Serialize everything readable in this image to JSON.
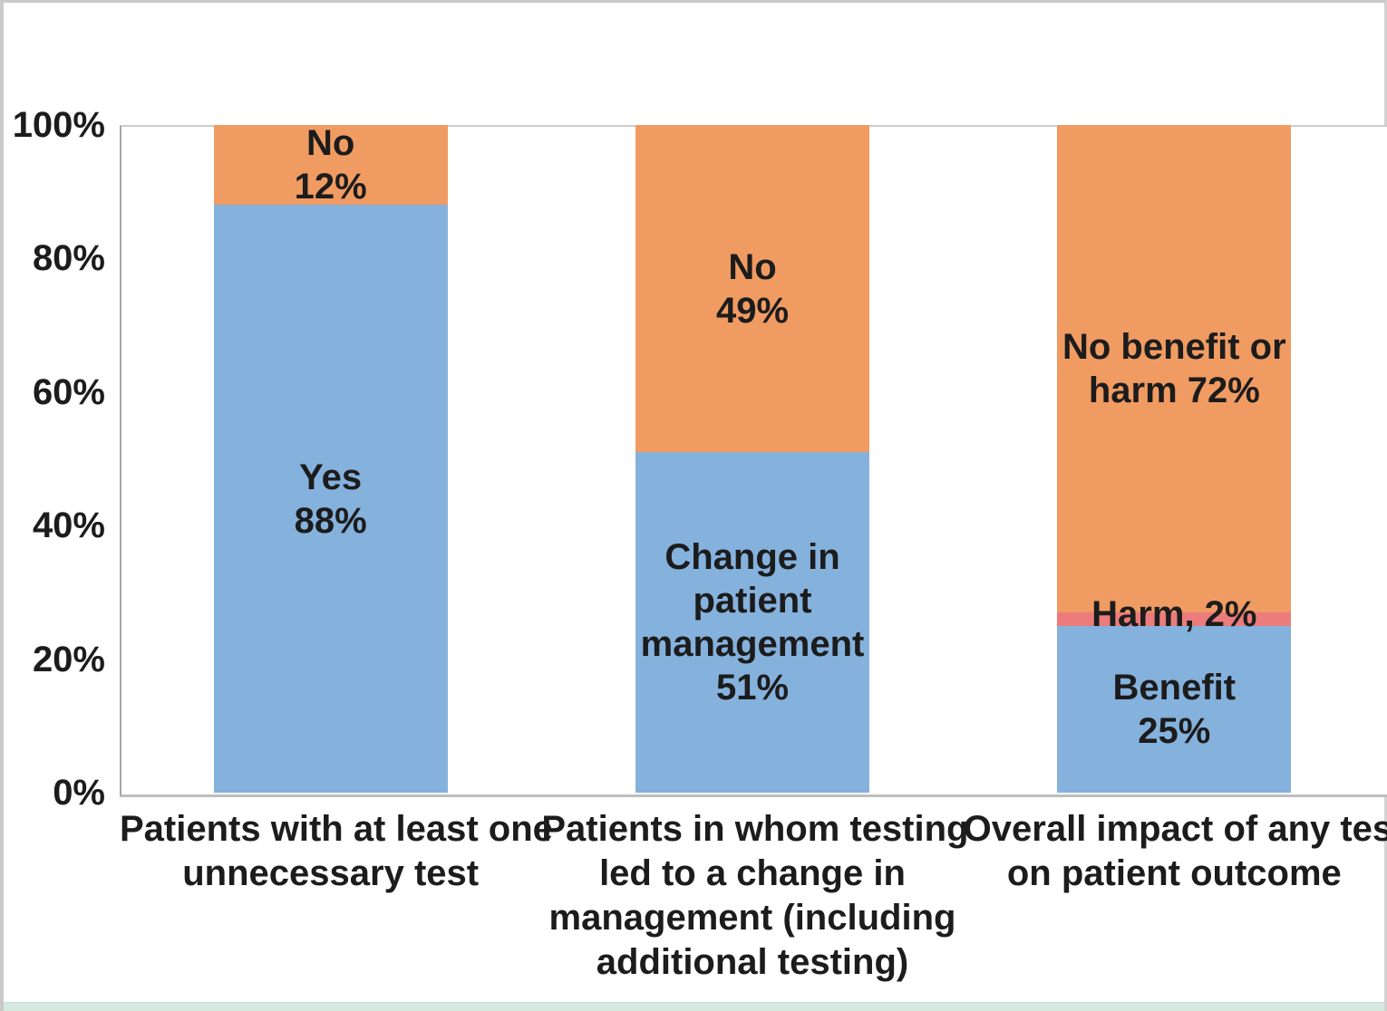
{
  "figure": {
    "background_color": "#ffffff",
    "outer_border_color": "#c9c9c9",
    "bottom_strip_color": "#d5e9e1"
  },
  "chart_data": {
    "type": "bar",
    "subtype": "stacked-100-percent-column",
    "title": "",
    "xlabel": "",
    "ylabel": "",
    "ylim": [
      0,
      100
    ],
    "grid": false,
    "legend_position": "none",
    "axis_line_color": "#a6a6a6",
    "palette": {
      "blue": "#85B1DD",
      "orange": "#F09B62",
      "red": "#EB7C7B"
    },
    "y_axis": {
      "ticks": [
        {
          "value": 100,
          "label": "100%"
        },
        {
          "value": 80,
          "label": "80%"
        },
        {
          "value": 60,
          "label": "60%"
        },
        {
          "value": 40,
          "label": "40%"
        },
        {
          "value": 20,
          "label": "20%"
        },
        {
          "value": 0,
          "label": "0%"
        }
      ]
    },
    "categories": [
      "Patients with at least one unnecessary test",
      "Patients in whom testing led to a change in management (including additional testing)",
      "Overall impact of any test on patient outcome"
    ],
    "bars": [
      {
        "category_lines": [
          "Patients with at least one",
          "unnecessary test"
        ],
        "segments": [
          {
            "name": "Yes",
            "value": 88,
            "color": "blue",
            "label_lines": [
              "Yes",
              "88%"
            ]
          },
          {
            "name": "No",
            "value": 12,
            "color": "orange",
            "label_lines": [
              "No",
              "12%"
            ]
          }
        ]
      },
      {
        "category_lines": [
          "Patients in whom testing",
          "led to a change in",
          "management (including",
          "additional testing)"
        ],
        "segments": [
          {
            "name": "Change in patient management",
            "value": 51,
            "color": "blue",
            "label_lines": [
              "Change in",
              "patient",
              "management",
              "51%"
            ]
          },
          {
            "name": "No",
            "value": 49,
            "color": "orange",
            "label_lines": [
              "No",
              "49%"
            ]
          }
        ]
      },
      {
        "category_lines": [
          "Overall impact of any test",
          "on patient outcome"
        ],
        "segments": [
          {
            "name": "Benefit",
            "value": 25,
            "color": "blue",
            "label_lines": [
              "Benefit",
              "25%"
            ]
          },
          {
            "name": "Harm",
            "value": 2,
            "color": "red",
            "label_lines": [
              "Harm, 2%"
            ],
            "label_overflow": true
          },
          {
            "name": "No benefit or harm",
            "value": 72,
            "color": "orange",
            "label_lines": [
              "No benefit or",
              "harm 72%"
            ]
          }
        ]
      }
    ]
  }
}
